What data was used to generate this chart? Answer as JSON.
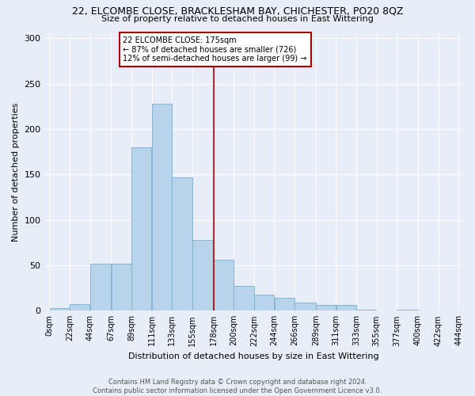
{
  "title": "22, ELCOMBE CLOSE, BRACKLESHAM BAY, CHICHESTER, PO20 8QZ",
  "subtitle": "Size of property relative to detached houses in East Wittering",
  "xlabel": "Distribution of detached houses by size in East Wittering",
  "ylabel": "Number of detached properties",
  "footer_line1": "Contains HM Land Registry data © Crown copyright and database right 2024.",
  "footer_line2": "Contains public sector information licensed under the Open Government Licence v3.0.",
  "bin_labels": [
    "0sqm",
    "22sqm",
    "44sqm",
    "67sqm",
    "89sqm",
    "111sqm",
    "133sqm",
    "155sqm",
    "178sqm",
    "200sqm",
    "222sqm",
    "244sqm",
    "266sqm",
    "289sqm",
    "311sqm",
    "333sqm",
    "355sqm",
    "377sqm",
    "400sqm",
    "422sqm",
    "444sqm"
  ],
  "bin_edges": [
    0,
    22,
    44,
    67,
    89,
    111,
    133,
    155,
    178,
    200,
    222,
    244,
    266,
    289,
    311,
    333,
    355,
    377,
    400,
    422,
    444
  ],
  "bar_heights": [
    3,
    7,
    52,
    52,
    180,
    228,
    147,
    78,
    56,
    27,
    18,
    14,
    9,
    6,
    6,
    1,
    0,
    1,
    0,
    0
  ],
  "bar_color": "#b8d4ea",
  "bar_edge_color": "#7aafd4",
  "property_line_x": 178,
  "property_line_color": "#aa0000",
  "annotation_line1": "22 ELCOMBE CLOSE: 175sqm",
  "annotation_line2": "← 87% of detached houses are smaller (726)",
  "annotation_line3": "12% of semi-detached houses are larger (99) →",
  "annotation_box_edge_color": "#aa0000",
  "ylim": [
    0,
    305
  ],
  "yticks": [
    0,
    50,
    100,
    150,
    200,
    250,
    300
  ],
  "bg_color": "#e8eef8",
  "plot_bg_color": "#e8eef8",
  "title_fontsize": 9,
  "subtitle_fontsize": 8,
  "ylabel_fontsize": 8,
  "xlabel_fontsize": 8,
  "tick_fontsize": 7,
  "footer_fontsize": 6
}
